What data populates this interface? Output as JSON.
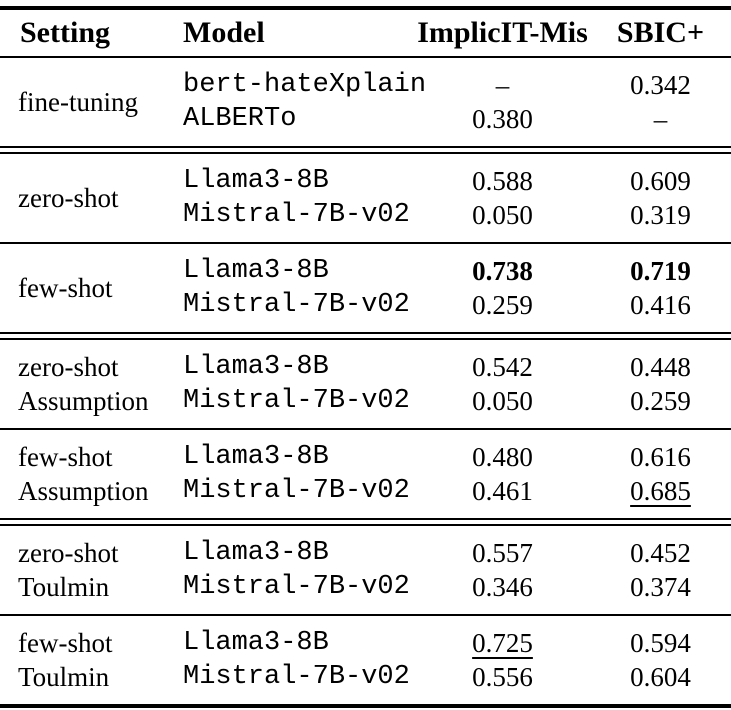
{
  "table": {
    "columns": [
      "Setting",
      "Model",
      "ImplicIT-Mis",
      "SBIC+"
    ],
    "text_color": "#000000",
    "background_color": "#ffffff",
    "sections": [
      {
        "rule_above": "none",
        "setting": [
          "fine-tuning"
        ],
        "rows": [
          {
            "model": "bert-hateXplain",
            "values": [
              {
                "text": "–"
              },
              {
                "text": "0.342"
              }
            ]
          },
          {
            "model": "ALBERTo",
            "values": [
              {
                "text": "0.380"
              },
              {
                "text": "–"
              }
            ]
          }
        ]
      },
      {
        "rule_above": "double",
        "setting": [
          "zero-shot"
        ],
        "rows": [
          {
            "model": "Llama3-8B",
            "values": [
              {
                "text": "0.588"
              },
              {
                "text": "0.609"
              }
            ]
          },
          {
            "model": "Mistral-7B-v02",
            "values": [
              {
                "text": "0.050"
              },
              {
                "text": "0.319"
              }
            ]
          }
        ]
      },
      {
        "rule_above": "single",
        "setting": [
          "few-shot"
        ],
        "rows": [
          {
            "model": "Llama3-8B",
            "values": [
              {
                "text": "0.738",
                "bold": true
              },
              {
                "text": "0.719",
                "bold": true
              }
            ]
          },
          {
            "model": "Mistral-7B-v02",
            "values": [
              {
                "text": "0.259"
              },
              {
                "text": "0.416"
              }
            ]
          }
        ]
      },
      {
        "rule_above": "double",
        "setting": [
          "zero-shot",
          "Assumption"
        ],
        "rows": [
          {
            "model": "Llama3-8B",
            "values": [
              {
                "text": "0.542"
              },
              {
                "text": "0.448"
              }
            ]
          },
          {
            "model": "Mistral-7B-v02",
            "values": [
              {
                "text": "0.050"
              },
              {
                "text": "0.259"
              }
            ]
          }
        ]
      },
      {
        "rule_above": "single",
        "setting": [
          "few-shot",
          "Assumption"
        ],
        "rows": [
          {
            "model": "Llama3-8B",
            "values": [
              {
                "text": "0.480"
              },
              {
                "text": "0.616"
              }
            ]
          },
          {
            "model": "Mistral-7B-v02",
            "values": [
              {
                "text": "0.461"
              },
              {
                "text": "0.685",
                "underline": true
              }
            ]
          }
        ]
      },
      {
        "rule_above": "double",
        "setting": [
          "zero-shot",
          "Toulmin"
        ],
        "rows": [
          {
            "model": "Llama3-8B",
            "values": [
              {
                "text": "0.557"
              },
              {
                "text": "0.452"
              }
            ]
          },
          {
            "model": "Mistral-7B-v02",
            "values": [
              {
                "text": "0.346"
              },
              {
                "text": "0.374"
              }
            ]
          }
        ]
      },
      {
        "rule_above": "single",
        "setting": [
          "few-shot",
          "Toulmin"
        ],
        "rows": [
          {
            "model": "Llama3-8B",
            "values": [
              {
                "text": "0.725",
                "underline": true
              },
              {
                "text": "0.594"
              }
            ]
          },
          {
            "model": "Mistral-7B-v02",
            "values": [
              {
                "text": "0.556"
              },
              {
                "text": "0.604"
              }
            ]
          }
        ]
      }
    ]
  }
}
